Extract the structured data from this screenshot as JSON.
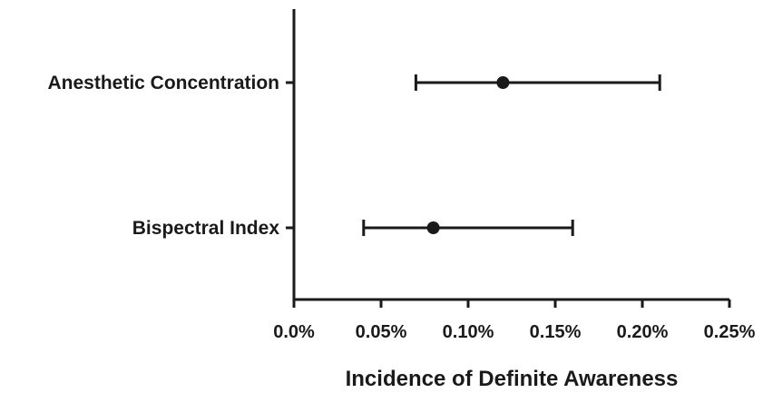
{
  "chart_data": {
    "type": "forest",
    "categories": [
      "Anesthetic Concentration",
      "Bispectral Index"
    ],
    "series": [
      {
        "points": [
          {
            "category": "Anesthetic Concentration",
            "value": 0.12,
            "ci_low": 0.07,
            "ci_high": 0.21
          },
          {
            "category": "Bispectral Index",
            "value": 0.08,
            "ci_low": 0.04,
            "ci_high": 0.16
          }
        ]
      }
    ],
    "xlabel": "Incidence of Definite Awareness",
    "xlim": [
      0,
      0.25
    ],
    "xticks": [
      0,
      0.05,
      0.1,
      0.15,
      0.2,
      0.25
    ],
    "xtick_labels": [
      "0.0%",
      "0.05%",
      "0.10%",
      "0.15%",
      "0.20%",
      "0.25%"
    ],
    "grid": false,
    "marker_color": "#1a1a1a"
  }
}
